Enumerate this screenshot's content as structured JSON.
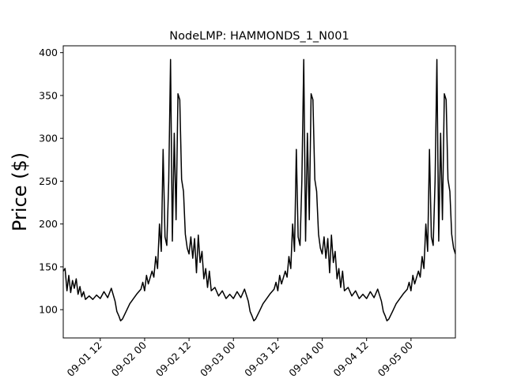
{
  "chart_data": {
    "type": "line",
    "title": "NodeLMP: HAMMONDS_1_N001",
    "xlabel": "",
    "ylabel": "Price ($)",
    "x_axis": {
      "kind": "datetime",
      "range": [
        "09-01 02:00",
        "09-05 12:00"
      ],
      "tick_labels": [
        "09-01 12",
        "09-02 00",
        "09-02 12",
        "09-03 00",
        "09-03 12",
        "09-04 00",
        "09-04 12",
        "09-05 00"
      ],
      "tick_label_rotation_deg": 45,
      "tick_labels_clipped_left": true
    },
    "y_axis": {
      "range": [
        67,
        408
      ],
      "ticks": [
        100,
        150,
        200,
        250,
        300,
        350,
        400
      ]
    },
    "grid": false,
    "legend": "none",
    "series": [
      {
        "color": "#000000",
        "points": [
          [
            "09-01 02:00",
            145
          ],
          [
            "09-01 02:30",
            148
          ],
          [
            "09-01 03:00",
            122
          ],
          [
            "09-01 03:30",
            140
          ],
          [
            "09-01 04:00",
            120
          ],
          [
            "09-01 04:30",
            134
          ],
          [
            "09-01 05:00",
            125
          ],
          [
            "09-01 05:30",
            136
          ],
          [
            "09-01 06:00",
            118
          ],
          [
            "09-01 06:30",
            127
          ],
          [
            "09-01 07:00",
            115
          ],
          [
            "09-01 07:30",
            121
          ],
          [
            "09-01 08:00",
            112
          ],
          [
            "09-01 09:00",
            116
          ],
          [
            "09-01 10:00",
            112
          ],
          [
            "09-01 11:00",
            117
          ],
          [
            "09-01 12:00",
            113
          ],
          [
            "09-01 13:00",
            121
          ],
          [
            "09-01 14:00",
            114
          ],
          [
            "09-01 15:00",
            125
          ],
          [
            "09-01 16:00",
            110
          ],
          [
            "09-01 16:30",
            98
          ],
          [
            "09-01 17:00",
            93
          ],
          [
            "09-01 17:30",
            87
          ],
          [
            "09-01 18:00",
            89
          ],
          [
            "09-01 19:00",
            98
          ],
          [
            "09-01 20:00",
            107
          ],
          [
            "09-01 21:00",
            113
          ],
          [
            "09-01 22:00",
            119
          ],
          [
            "09-01 23:00",
            124
          ],
          [
            "09-01 23:30",
            132
          ],
          [
            "09-02 00:00",
            122
          ],
          [
            "09-02 00:30",
            140
          ],
          [
            "09-02 01:00",
            130
          ],
          [
            "09-02 02:00",
            145
          ],
          [
            "09-02 02:30",
            138
          ],
          [
            "09-02 03:00",
            162
          ],
          [
            "09-02 03:30",
            148
          ],
          [
            "09-02 04:00",
            200
          ],
          [
            "09-02 04:30",
            168
          ],
          [
            "09-02 05:00",
            287
          ],
          [
            "09-02 05:30",
            185
          ],
          [
            "09-02 06:00",
            175
          ],
          [
            "09-02 06:30",
            250
          ],
          [
            "09-02 07:00",
            392
          ],
          [
            "09-02 07:30",
            180
          ],
          [
            "09-02 08:00",
            306
          ],
          [
            "09-02 08:30",
            205
          ],
          [
            "09-02 09:00",
            352
          ],
          [
            "09-02 09:30",
            345
          ],
          [
            "09-02 10:00",
            252
          ],
          [
            "09-02 10:30",
            238
          ],
          [
            "09-02 11:00",
            188
          ],
          [
            "09-02 11:30",
            172
          ],
          [
            "09-02 12:00",
            165
          ],
          [
            "09-02 12:30",
            185
          ],
          [
            "09-02 13:00",
            160
          ],
          [
            "09-02 13:30",
            183
          ],
          [
            "09-02 14:00",
            143
          ],
          [
            "09-02 14:30",
            187
          ],
          [
            "09-02 15:00",
            155
          ],
          [
            "09-02 15:30",
            168
          ],
          [
            "09-02 16:00",
            136
          ],
          [
            "09-02 16:30",
            148
          ],
          [
            "09-02 17:00",
            126
          ],
          [
            "09-02 17:30",
            145
          ],
          [
            "09-02 18:00",
            122
          ],
          [
            "09-02 19:00",
            126
          ],
          [
            "09-02 20:00",
            116
          ],
          [
            "09-02 21:00",
            122
          ],
          [
            "09-02 22:00",
            113
          ],
          [
            "09-02 23:00",
            118
          ],
          [
            "09-03 00:00",
            113
          ],
          [
            "09-03 01:00",
            121
          ],
          [
            "09-03 02:00",
            114
          ],
          [
            "09-03 03:00",
            124
          ],
          [
            "09-03 04:00",
            110
          ],
          [
            "09-03 04:30",
            98
          ],
          [
            "09-03 05:00",
            93
          ],
          [
            "09-03 05:30",
            87
          ],
          [
            "09-03 06:00",
            89
          ],
          [
            "09-03 07:00",
            98
          ],
          [
            "09-03 08:00",
            107
          ],
          [
            "09-03 09:00",
            113
          ],
          [
            "09-03 10:00",
            119
          ],
          [
            "09-03 11:00",
            124
          ],
          [
            "09-03 11:30",
            132
          ],
          [
            "09-03 12:00",
            122
          ],
          [
            "09-03 12:30",
            140
          ],
          [
            "09-03 13:00",
            130
          ],
          [
            "09-03 14:00",
            145
          ],
          [
            "09-03 14:30",
            138
          ],
          [
            "09-03 15:00",
            162
          ],
          [
            "09-03 15:30",
            148
          ],
          [
            "09-03 16:00",
            200
          ],
          [
            "09-03 16:30",
            168
          ],
          [
            "09-03 17:00",
            287
          ],
          [
            "09-03 17:30",
            185
          ],
          [
            "09-03 18:00",
            175
          ],
          [
            "09-03 18:30",
            250
          ],
          [
            "09-03 19:00",
            392
          ],
          [
            "09-03 19:30",
            180
          ],
          [
            "09-03 20:00",
            306
          ],
          [
            "09-03 20:30",
            205
          ],
          [
            "09-03 21:00",
            352
          ],
          [
            "09-03 21:30",
            345
          ],
          [
            "09-03 22:00",
            252
          ],
          [
            "09-03 22:30",
            238
          ],
          [
            "09-03 23:00",
            188
          ],
          [
            "09-03 23:30",
            172
          ],
          [
            "09-04 00:00",
            165
          ],
          [
            "09-04 00:30",
            185
          ],
          [
            "09-04 01:00",
            160
          ],
          [
            "09-04 01:30",
            183
          ],
          [
            "09-04 02:00",
            143
          ],
          [
            "09-04 02:30",
            187
          ],
          [
            "09-04 03:00",
            155
          ],
          [
            "09-04 03:30",
            168
          ],
          [
            "09-04 04:00",
            136
          ],
          [
            "09-04 04:30",
            148
          ],
          [
            "09-04 05:00",
            126
          ],
          [
            "09-04 05:30",
            145
          ],
          [
            "09-04 06:00",
            122
          ],
          [
            "09-04 07:00",
            126
          ],
          [
            "09-04 08:00",
            116
          ],
          [
            "09-04 09:00",
            122
          ],
          [
            "09-04 10:00",
            113
          ],
          [
            "09-04 11:00",
            118
          ],
          [
            "09-04 12:00",
            113
          ],
          [
            "09-04 13:00",
            121
          ],
          [
            "09-04 14:00",
            114
          ],
          [
            "09-04 15:00",
            124
          ],
          [
            "09-04 16:00",
            110
          ],
          [
            "09-04 16:30",
            98
          ],
          [
            "09-04 17:00",
            93
          ],
          [
            "09-04 17:30",
            87
          ],
          [
            "09-04 18:00",
            89
          ],
          [
            "09-04 19:00",
            98
          ],
          [
            "09-04 20:00",
            107
          ],
          [
            "09-04 21:00",
            113
          ],
          [
            "09-04 22:00",
            119
          ],
          [
            "09-04 23:00",
            124
          ],
          [
            "09-04 23:30",
            132
          ],
          [
            "09-05 00:00",
            122
          ],
          [
            "09-05 00:30",
            140
          ],
          [
            "09-05 01:00",
            130
          ],
          [
            "09-05 02:00",
            145
          ],
          [
            "09-05 02:30",
            138
          ],
          [
            "09-05 03:00",
            162
          ],
          [
            "09-05 03:30",
            148
          ],
          [
            "09-05 04:00",
            200
          ],
          [
            "09-05 04:30",
            168
          ],
          [
            "09-05 05:00",
            287
          ],
          [
            "09-05 05:30",
            185
          ],
          [
            "09-05 06:00",
            175
          ],
          [
            "09-05 06:30",
            250
          ],
          [
            "09-05 07:00",
            392
          ],
          [
            "09-05 07:30",
            180
          ],
          [
            "09-05 08:00",
            306
          ],
          [
            "09-05 08:30",
            205
          ],
          [
            "09-05 09:00",
            352
          ],
          [
            "09-05 09:30",
            345
          ],
          [
            "09-05 10:00",
            252
          ],
          [
            "09-05 10:30",
            238
          ],
          [
            "09-05 11:00",
            188
          ],
          [
            "09-05 11:30",
            172
          ],
          [
            "09-05 12:00",
            165
          ]
        ]
      }
    ]
  }
}
